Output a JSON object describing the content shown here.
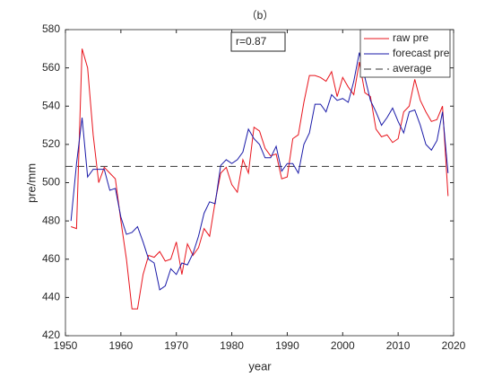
{
  "chart_data": {
    "type": "line",
    "title": "（b）",
    "xlabel": "year",
    "ylabel": "pre/mm",
    "annotation": "r=0.87",
    "x": [
      1951,
      1952,
      1953,
      1954,
      1955,
      1956,
      1957,
      1958,
      1959,
      1960,
      1961,
      1962,
      1963,
      1964,
      1965,
      1966,
      1967,
      1968,
      1969,
      1970,
      1971,
      1972,
      1973,
      1974,
      1975,
      1976,
      1977,
      1978,
      1979,
      1980,
      1981,
      1982,
      1983,
      1984,
      1985,
      1986,
      1987,
      1988,
      1989,
      1990,
      1991,
      1992,
      1993,
      1994,
      1995,
      1996,
      1997,
      1998,
      1999,
      2000,
      2001,
      2002,
      2003,
      2004,
      2005,
      2006,
      2007,
      2008,
      2009,
      2010,
      2011,
      2012,
      2013,
      2014,
      2015,
      2016,
      2017,
      2018,
      2019
    ],
    "series": [
      {
        "name": "raw pre",
        "color": "#e8141c",
        "values": [
          477,
          476,
          570,
          560,
          525,
          500,
          508,
          505,
          502,
          480,
          460,
          434,
          434,
          452,
          462,
          461,
          464,
          459,
          460,
          469,
          452,
          468,
          462,
          466,
          476,
          472,
          490,
          505,
          508,
          499,
          495,
          512,
          505,
          529,
          527,
          518,
          514,
          515,
          502,
          503,
          523,
          525,
          542,
          556,
          556,
          555,
          553,
          558,
          545,
          555,
          550,
          546,
          563,
          547,
          545,
          528,
          524,
          525,
          521,
          523,
          537,
          540,
          554,
          543,
          537,
          532,
          533,
          540,
          493
        ]
      },
      {
        "name": "forecast pre",
        "color": "#1a1aa8",
        "values": [
          480,
          510,
          534,
          503,
          507,
          507,
          507,
          496,
          497,
          482,
          473,
          474,
          477,
          469,
          460,
          458,
          444,
          446,
          455,
          452,
          458,
          457,
          463,
          472,
          484,
          490,
          489,
          509,
          512,
          510,
          512,
          516,
          528,
          523,
          520,
          513,
          513,
          519,
          506,
          510,
          510,
          505,
          520,
          526,
          541,
          541,
          537,
          546,
          543,
          544,
          542,
          553,
          568,
          555,
          543,
          537,
          530,
          534,
          539,
          532,
          526,
          537,
          538,
          530,
          520,
          517,
          522,
          537,
          505
        ]
      }
    ],
    "reference_line": {
      "name": "average",
      "value": 508.5,
      "color": "#333333"
    },
    "xlim": [
      1950,
      2020
    ],
    "xticks": [
      1950,
      1960,
      1970,
      1980,
      1990,
      2000,
      2010,
      2020
    ],
    "ylim": [
      420,
      580
    ],
    "yticks": [
      420,
      440,
      460,
      480,
      500,
      520,
      540,
      560,
      580
    ],
    "legend": "upper right",
    "grid": false
  }
}
